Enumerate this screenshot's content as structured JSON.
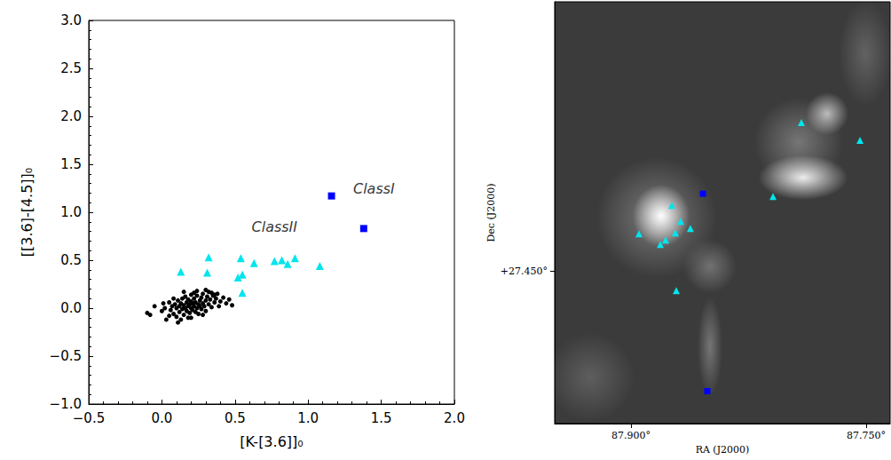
{
  "chart_data": [
    {
      "type": "scatter",
      "xlabel": "[K-[3.6]]₀",
      "ylabel": "[[3.6]-[4.5]]₀",
      "xlim": [
        -0.5,
        2.0
      ],
      "ylim": [
        -1.0,
        3.0
      ],
      "xticks": [
        {
          "value": -0.5,
          "label": "−0.5"
        },
        {
          "value": 0,
          "label": "0.0"
        },
        {
          "value": 0.5,
          "label": "0.5"
        },
        {
          "value": 1.0,
          "label": "1.0"
        },
        {
          "value": 1.5,
          "label": "1.5"
        },
        {
          "value": 2.0,
          "label": "2.0"
        }
      ],
      "yticks": [
        {
          "value": -1.0,
          "label": "−1.0"
        },
        {
          "value": -0.5,
          "label": "−0.5"
        },
        {
          "value": 0,
          "label": "0.0"
        },
        {
          "value": 0.5,
          "label": "0.5"
        },
        {
          "value": 1.0,
          "label": "1.0"
        },
        {
          "value": 1.5,
          "label": "1.5"
        },
        {
          "value": 2.0,
          "label": "2.0"
        },
        {
          "value": 2.5,
          "label": "2.5"
        },
        {
          "value": 3.0,
          "label": "3.0"
        }
      ],
      "series": [
        {
          "color": "#000000",
          "marker": "circle",
          "x": [
            -0.1,
            -0.08,
            0.0,
            0.02,
            0.03,
            0.05,
            0.06,
            0.07,
            0.08,
            0.09,
            0.1,
            0.1,
            0.11,
            0.12,
            0.12,
            0.13,
            0.14,
            0.14,
            0.15,
            0.15,
            0.16,
            0.16,
            0.17,
            0.17,
            0.18,
            0.18,
            0.19,
            0.19,
            0.2,
            0.2,
            0.2,
            0.21,
            0.21,
            0.22,
            0.22,
            0.23,
            0.23,
            0.24,
            0.24,
            0.25,
            0.25,
            0.26,
            0.26,
            0.27,
            0.27,
            0.28,
            0.28,
            0.29,
            0.3,
            0.3,
            0.31,
            0.32,
            0.32,
            0.33,
            0.34,
            0.35,
            0.36,
            0.37,
            0.38,
            0.4,
            0.42,
            0.44,
            0.46,
            0.48,
            0.2,
            0.15,
            0.05,
            0.08,
            0.13,
            -0.05,
            0.01,
            0.24,
            0.34,
            0.11,
            0.28,
            0.18,
            0.22,
            0.3,
            0.39,
            0.36
          ],
          "y": [
            -0.05,
            -0.07,
            -0.03,
            0.0,
            -0.12,
            0.06,
            -0.02,
            0.02,
            -0.06,
            0.04,
            0.0,
            -0.09,
            0.08,
            0.02,
            -0.04,
            0.05,
            -0.01,
            0.1,
            0.03,
            -0.07,
            0.0,
            0.12,
            0.06,
            -0.03,
            0.02,
            0.09,
            -0.05,
            0.04,
            0.0,
            0.07,
            0.14,
            -0.02,
            0.05,
            0.02,
            0.1,
            -0.04,
            0.06,
            0.0,
            0.13,
            0.04,
            -0.06,
            0.08,
            0.02,
            -0.01,
            0.11,
            0.05,
            0.15,
            0.02,
            0.08,
            -0.03,
            0.12,
            0.04,
            0.17,
            0.09,
            0.01,
            0.13,
            0.06,
            0.1,
            0.15,
            0.07,
            0.11,
            0.05,
            0.09,
            0.03,
            -0.1,
            0.17,
            -0.08,
            0.1,
            -0.12,
            0.02,
            0.05,
            0.18,
            0.16,
            -0.15,
            -0.07,
            -0.1,
            0.16,
            0.19,
            0.02,
            0.14
          ]
        },
        {
          "color": "#00e5ee",
          "marker": "triangle",
          "x": [
            0.13,
            0.32,
            0.31,
            0.54,
            0.52,
            0.55,
            0.55,
            0.63,
            0.77,
            0.82,
            0.86,
            0.91,
            1.08
          ],
          "y": [
            0.38,
            0.53,
            0.37,
            0.52,
            0.32,
            0.35,
            0.16,
            0.47,
            0.49,
            0.5,
            0.46,
            0.52,
            0.44
          ]
        },
        {
          "color": "#0000ff",
          "marker": "square",
          "x": [
            1.16,
            1.38
          ],
          "y": [
            1.17,
            0.83
          ]
        }
      ],
      "annotations": [
        {
          "text": "ClassI",
          "x": 1.45,
          "y": 1.25
        },
        {
          "text": "ClassII",
          "x": 0.77,
          "y": 0.85
        }
      ]
    },
    {
      "type": "scatter",
      "xlabel": "RA (J2000)",
      "ylabel": "Dec (J2000)",
      "xlim": [
        87.9487,
        87.7347
      ],
      "ylim": [
        27.364,
        27.602
      ],
      "xticks": [
        {
          "value": 87.9,
          "label": "87.900°"
        },
        {
          "value": 87.75,
          "label": "87.750°"
        }
      ],
      "yticks": [
        {
          "value": 27.45,
          "label": "+27.450°"
        }
      ],
      "series": [
        {
          "color": "#00e5ee",
          "marker": "triangle",
          "x": [
            87.7913,
            87.7539,
            87.8094,
            87.874,
            87.8683,
            87.8621,
            87.8717,
            87.8949,
            87.8779,
            87.8813,
            87.8711
          ],
          "y": [
            27.5338,
            27.5238,
            27.4921,
            27.4871,
            27.4781,
            27.4741,
            27.4716,
            27.4711,
            27.4676,
            27.4651,
            27.439
          ]
        },
        {
          "color": "#0000ff",
          "marker": "square",
          "x": [
            87.8541,
            87.8513
          ],
          "y": [
            27.4937,
            27.3823
          ]
        }
      ]
    }
  ]
}
